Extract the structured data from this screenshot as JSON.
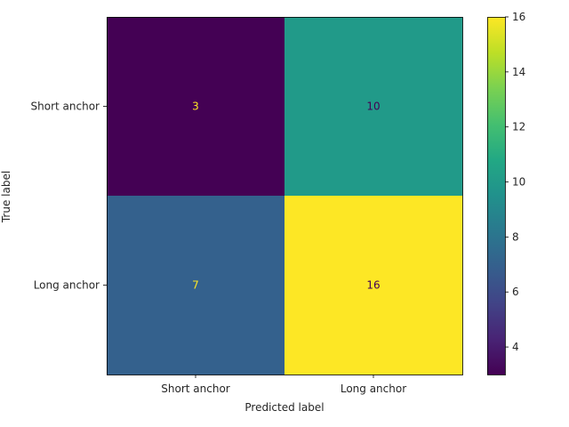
{
  "chart_data": {
    "type": "heatmap",
    "title": "",
    "xlabel": "Predicted label",
    "ylabel": "True label",
    "x_categories": [
      "Short anchor",
      "Long anchor"
    ],
    "y_categories": [
      "Short anchor",
      "Long anchor"
    ],
    "values": [
      [
        3,
        10
      ],
      [
        7,
        16
      ]
    ],
    "colormap": "viridis",
    "colorbar": {
      "vmin": 3,
      "vmax": 16,
      "ticks": [
        "4",
        "6",
        "8",
        "10",
        "12",
        "14",
        "16"
      ]
    },
    "annotation_colors": {
      "on_dark": "#fde725",
      "on_light": "#440154"
    },
    "grid": false
  }
}
